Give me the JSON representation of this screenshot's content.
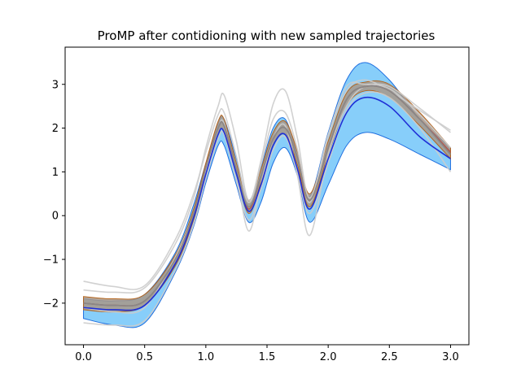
{
  "chart_data": {
    "type": "line",
    "title": "ProMP after contidioning with new sampled trajectories",
    "xlabel": "",
    "ylabel": "",
    "xlim": [
      -0.15,
      3.15
    ],
    "ylim": [
      -2.95,
      3.85
    ],
    "x_ticks": [
      0.0,
      0.5,
      1.0,
      1.5,
      2.0,
      2.5,
      3.0
    ],
    "x_tick_labels": [
      "0.0",
      "0.5",
      "1.0",
      "1.5",
      "2.0",
      "2.5",
      "3.0"
    ],
    "y_ticks": [
      -2,
      -1,
      0,
      1,
      2,
      3
    ],
    "y_tick_labels": [
      "−2",
      "−1",
      "0",
      "1",
      "2",
      "3"
    ],
    "grid": false,
    "x": [
      0.0,
      0.25,
      0.5,
      0.75,
      0.9,
      1.0,
      1.1,
      1.15,
      1.25,
      1.35,
      1.45,
      1.55,
      1.65,
      1.75,
      1.85,
      2.0,
      2.15,
      2.3,
      2.5,
      2.75,
      3.0
    ],
    "bands": [
      {
        "color": "#87cefa",
        "edge_color": "#1f6fe0",
        "lower": [
          -2.35,
          -2.5,
          -2.45,
          -1.3,
          -0.25,
          0.75,
          1.6,
          1.6,
          0.7,
          -0.15,
          0.3,
          1.2,
          1.55,
          0.9,
          -0.15,
          0.7,
          1.6,
          1.9,
          1.75,
          1.4,
          1.05
        ],
        "upper": [
          -1.9,
          -1.95,
          -1.8,
          -0.85,
          0.25,
          1.2,
          2.1,
          2.2,
          1.3,
          0.35,
          1.1,
          2.0,
          2.2,
          1.35,
          0.45,
          1.9,
          3.1,
          3.5,
          3.1,
          2.2,
          1.55
        ]
      },
      {
        "color": "#a89888",
        "edge_color": "#b5651d",
        "lower": [
          -2.15,
          -2.2,
          -2.05,
          -1.15,
          -0.1,
          0.95,
          1.85,
          1.9,
          0.95,
          0.05,
          0.75,
          1.6,
          1.85,
          1.15,
          0.2,
          1.4,
          2.5,
          2.85,
          2.7,
          2.05,
          1.3
        ],
        "upper": [
          -1.85,
          -1.9,
          -1.8,
          -0.9,
          0.15,
          1.2,
          2.15,
          2.2,
          1.2,
          0.35,
          1.05,
          1.9,
          2.15,
          1.45,
          0.5,
          1.7,
          2.8,
          3.05,
          3.0,
          2.35,
          1.55
        ]
      }
    ],
    "series": [
      {
        "color": "#cccccc",
        "values": [
          -1.5,
          -1.62,
          -1.6,
          -0.55,
          0.5,
          1.45,
          2.3,
          2.35,
          1.35,
          0.3,
          1.15,
          2.2,
          2.35,
          1.5,
          0.3,
          1.8,
          2.85,
          3.1,
          2.85,
          2.4,
          1.95
        ]
      },
      {
        "color": "#cccccc",
        "values": [
          -1.7,
          -1.75,
          -1.65,
          -0.65,
          0.4,
          1.55,
          2.5,
          2.75,
          1.7,
          0.35,
          1.25,
          2.55,
          2.85,
          1.75,
          0.4,
          1.85,
          2.95,
          3.0,
          2.95,
          2.45,
          1.9
        ]
      },
      {
        "color": "#cccccc",
        "values": [
          -2.1,
          -2.2,
          -2.1,
          -0.95,
          0.05,
          1.05,
          2.0,
          2.1,
          0.95,
          -0.35,
          0.7,
          1.75,
          2.05,
          0.9,
          -0.45,
          1.4,
          2.5,
          2.95,
          2.9,
          2.3,
          1.55
        ]
      },
      {
        "color": "#cccccc",
        "values": [
          -2.45,
          -2.5,
          -2.4,
          -1.25,
          -0.2,
          0.85,
          1.75,
          1.85,
          0.8,
          -0.1,
          0.6,
          1.5,
          1.8,
          0.95,
          0.05,
          1.2,
          2.4,
          2.8,
          2.7,
          2.0,
          1.0
        ]
      },
      {
        "color": "#b3574d",
        "values": [
          -2.0,
          -2.05,
          -1.95,
          -1.0,
          0.05,
          1.1,
          2.0,
          2.05,
          1.05,
          0.15,
          0.9,
          1.75,
          2.0,
          1.3,
          0.35,
          1.55,
          2.65,
          2.95,
          2.85,
          2.2,
          1.45
        ]
      },
      {
        "color": "#888888",
        "values": [
          -2.0,
          -2.05,
          -1.95,
          -1.0,
          0.05,
          1.1,
          2.0,
          2.05,
          1.05,
          0.2,
          0.9,
          1.75,
          2.0,
          1.3,
          0.35,
          1.55,
          2.65,
          2.95,
          2.85,
          2.2,
          1.4
        ]
      },
      {
        "color": "#1f2fd6",
        "values": [
          -2.1,
          -2.15,
          -2.05,
          -1.1,
          -0.05,
          0.95,
          1.85,
          1.9,
          0.95,
          0.1,
          0.7,
          1.6,
          1.85,
          1.05,
          0.15,
          1.3,
          2.35,
          2.7,
          2.5,
          1.8,
          1.3
        ]
      }
    ]
  }
}
